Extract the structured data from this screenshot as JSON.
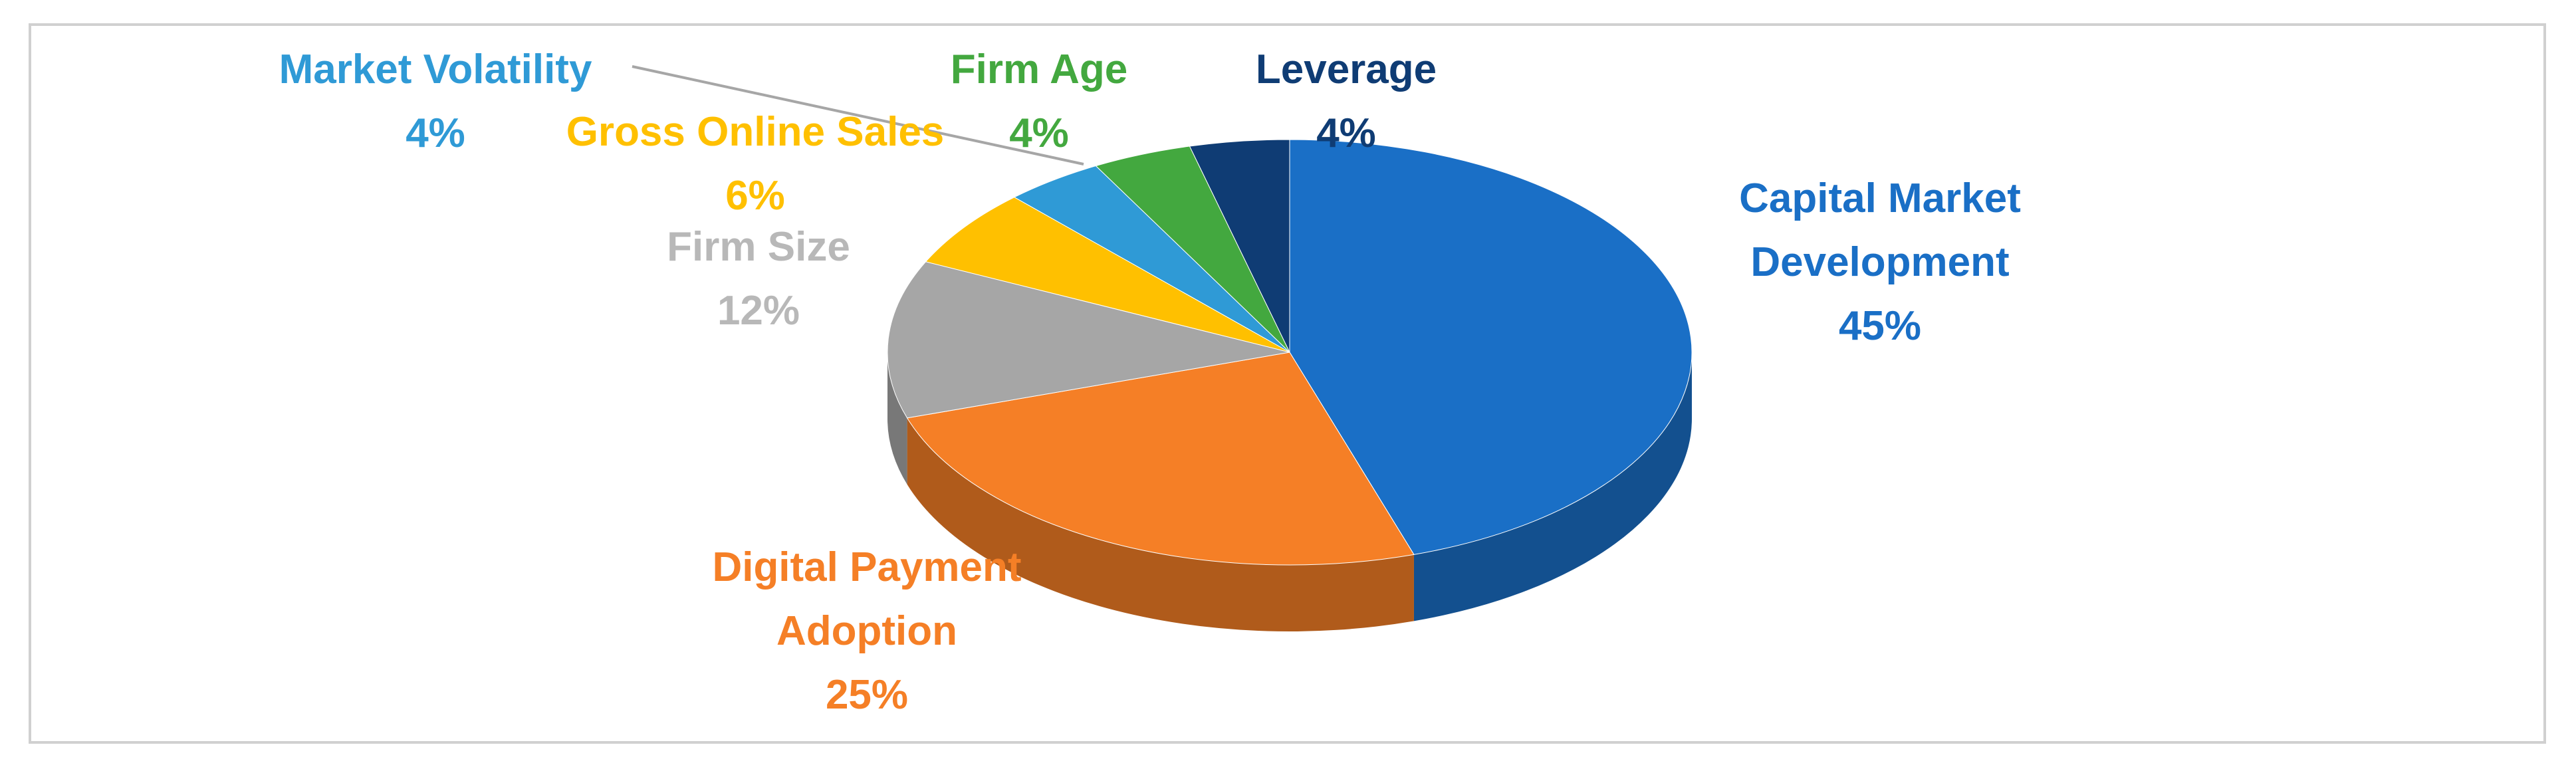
{
  "chart_data": {
    "type": "pie",
    "categories": [
      "Capital Market Development",
      "Digital Payment Adoption",
      "Firm Size",
      "Gross Online Sales",
      "Market Volatility",
      "Firm Age",
      "Leverage"
    ],
    "values": [
      45,
      25,
      12,
      6,
      4,
      4,
      4
    ],
    "value_labels": [
      "45%",
      "25%",
      "12%",
      "6%",
      "4%",
      "4%",
      "4%"
    ],
    "colors": [
      "#1a6fc6",
      "#f57f26",
      "#a6a6a6",
      "#ffc000",
      "#2f9ad6",
      "#43a83f",
      "#0f3c74"
    ]
  }
}
